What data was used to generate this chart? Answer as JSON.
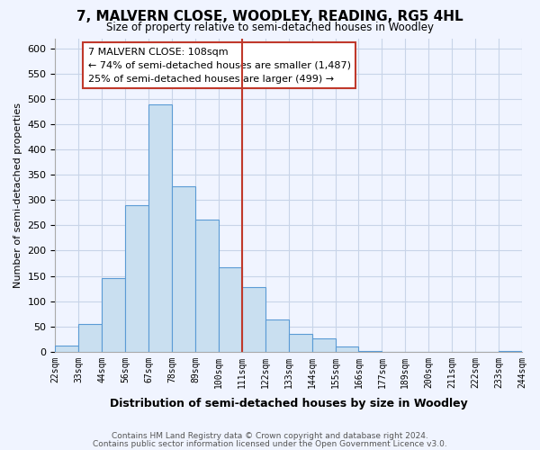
{
  "title": "7, MALVERN CLOSE, WOODLEY, READING, RG5 4HL",
  "subtitle": "Size of property relative to semi-detached houses in Woodley",
  "xlabel": "Distribution of semi-detached houses by size in Woodley",
  "ylabel": "Number of semi-detached properties",
  "footnote1": "Contains HM Land Registry data © Crown copyright and database right 2024.",
  "footnote2": "Contains public sector information licensed under the Open Government Licence v3.0.",
  "bar_labels": [
    "22sqm",
    "33sqm",
    "44sqm",
    "56sqm",
    "67sqm",
    "78sqm",
    "89sqm",
    "100sqm",
    "111sqm",
    "122sqm",
    "133sqm",
    "144sqm",
    "155sqm",
    "166sqm",
    "177sqm",
    "189sqm",
    "200sqm",
    "211sqm",
    "222sqm",
    "233sqm",
    "244sqm"
  ],
  "bar_values": [
    12,
    54,
    145,
    290,
    490,
    328,
    262,
    167,
    127,
    63,
    36,
    27,
    10,
    2,
    0,
    0,
    0,
    0,
    0,
    2
  ],
  "bar_color": "#c9dff0",
  "bar_edge_color": "#5b9bd5",
  "vline_index": 8,
  "annotation_title": "7 MALVERN CLOSE: 108sqm",
  "annotation_line1": "← 74% of semi-detached houses are smaller (1,487)",
  "annotation_line2": "25% of semi-detached houses are larger (499) →",
  "vline_color": "#c0392b",
  "annotation_box_edge": "#c0392b",
  "ylim": [
    0,
    620
  ],
  "yticks": [
    0,
    50,
    100,
    150,
    200,
    250,
    300,
    350,
    400,
    450,
    500,
    550,
    600
  ],
  "bg_color": "#f0f4ff",
  "grid_color": "#c8d4e8"
}
